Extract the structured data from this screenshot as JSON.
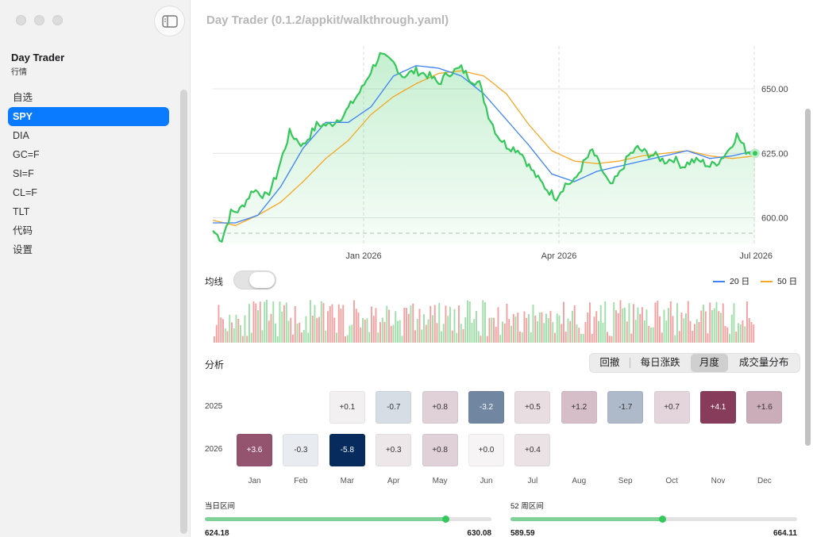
{
  "window_title": "Day Trader (0.1.2/appkit/walkthrough.yaml)",
  "sidebar": {
    "app_name": "Day Trader",
    "subtitle": "行情",
    "items": [
      {
        "label": "自选",
        "active": false
      },
      {
        "label": "SPY",
        "active": true
      },
      {
        "label": "DIA",
        "active": false
      },
      {
        "label": "GC=F",
        "active": false
      },
      {
        "label": "SI=F",
        "active": false
      },
      {
        "label": "CL=F",
        "active": false
      },
      {
        "label": "TLT",
        "active": false
      },
      {
        "label": "代码",
        "active": false
      },
      {
        "label": "设置",
        "active": false
      }
    ]
  },
  "chart_data": {
    "type": "line",
    "y_ticks": [
      "650.00",
      "625.00",
      "600.00"
    ],
    "x_ticks": [
      "Jan 2026",
      "Apr 2026",
      "Jul 2026"
    ],
    "ylim": [
      590,
      666
    ],
    "colors": {
      "price": "#34c759",
      "ma20": "#3b82f6",
      "ma50": "#f5a623",
      "up": "#9fdea9",
      "down": "#f2a0a0"
    },
    "price_keypoints": [
      [
        0,
        595
      ],
      [
        0.02,
        591.5
      ],
      [
        0.04,
        602
      ],
      [
        0.06,
        603
      ],
      [
        0.09,
        611
      ],
      [
        0.12,
        608
      ],
      [
        0.14,
        616
      ],
      [
        0.17,
        633
      ],
      [
        0.2,
        628
      ],
      [
        0.23,
        636
      ],
      [
        0.26,
        636
      ],
      [
        0.29,
        640
      ],
      [
        0.33,
        650
      ],
      [
        0.35,
        657
      ],
      [
        0.37,
        663
      ],
      [
        0.4,
        660
      ],
      [
        0.42,
        655
      ],
      [
        0.45,
        657
      ],
      [
        0.48,
        655
      ],
      [
        0.5,
        652
      ],
      [
        0.52,
        656
      ],
      [
        0.55,
        658
      ],
      [
        0.57,
        654
      ],
      [
        0.59,
        652
      ],
      [
        0.61,
        640
      ],
      [
        0.63,
        632
      ],
      [
        0.65,
        628
      ],
      [
        0.68,
        626
      ],
      [
        0.7,
        620
      ],
      [
        0.72,
        615
      ],
      [
        0.74,
        611
      ],
      [
        0.76,
        608
      ],
      [
        0.78,
        613
      ],
      [
        0.8,
        614
      ],
      [
        0.82,
        621
      ],
      [
        0.84,
        626
      ],
      [
        0.86,
        619
      ],
      [
        0.88,
        612
      ],
      [
        0.9,
        617
      ],
      [
        0.92,
        624
      ],
      [
        0.94,
        627
      ],
      [
        0.96,
        625
      ],
      [
        0.98,
        624
      ],
      [
        1.0,
        622
      ],
      [
        1.02,
        623
      ],
      [
        1.04,
        620
      ],
      [
        1.06,
        622
      ],
      [
        1.08,
        622
      ],
      [
        1.1,
        620
      ],
      [
        1.12,
        622
      ],
      [
        1.14,
        626
      ],
      [
        1.16,
        632
      ],
      [
        1.18,
        626
      ],
      [
        1.2,
        625
      ]
    ],
    "ma20_keypoints": [
      [
        0,
        598
      ],
      [
        0.05,
        598
      ],
      [
        0.1,
        601
      ],
      [
        0.15,
        612
      ],
      [
        0.2,
        627
      ],
      [
        0.25,
        637
      ],
      [
        0.3,
        637
      ],
      [
        0.35,
        643
      ],
      [
        0.4,
        655
      ],
      [
        0.45,
        659
      ],
      [
        0.5,
        658
      ],
      [
        0.55,
        655
      ],
      [
        0.6,
        648
      ],
      [
        0.65,
        638
      ],
      [
        0.7,
        628
      ],
      [
        0.75,
        617
      ],
      [
        0.8,
        614
      ],
      [
        0.85,
        618
      ],
      [
        0.9,
        620
      ],
      [
        0.95,
        622
      ],
      [
        1.0,
        624
      ],
      [
        1.05,
        626
      ],
      [
        1.1,
        623
      ],
      [
        1.15,
        624
      ],
      [
        1.2,
        626
      ]
    ],
    "ma50_keypoints": [
      [
        0,
        599
      ],
      [
        0.05,
        597
      ],
      [
        0.1,
        601
      ],
      [
        0.15,
        606
      ],
      [
        0.2,
        614
      ],
      [
        0.25,
        623
      ],
      [
        0.3,
        630
      ],
      [
        0.35,
        640
      ],
      [
        0.4,
        647
      ],
      [
        0.45,
        652
      ],
      [
        0.5,
        656
      ],
      [
        0.55,
        657
      ],
      [
        0.6,
        655
      ],
      [
        0.65,
        648
      ],
      [
        0.7,
        636
      ],
      [
        0.75,
        626
      ],
      [
        0.8,
        622
      ],
      [
        0.85,
        621
      ],
      [
        0.9,
        622
      ],
      [
        0.95,
        624
      ],
      [
        1.0,
        625
      ],
      [
        1.05,
        626
      ],
      [
        1.1,
        624
      ],
      [
        1.15,
        623
      ],
      [
        1.2,
        624
      ]
    ]
  },
  "ma": {
    "label": "均线",
    "toggle_on": true
  },
  "legend": {
    "ma20": "20 日",
    "ma50": "50 日"
  },
  "analysis": {
    "label": "分析",
    "tabs": [
      "回撤",
      "每日涨跌",
      "月度",
      "成交量分布"
    ],
    "selected_tab": 2
  },
  "heatmap": {
    "months": [
      "Jan",
      "Feb",
      "Mar",
      "Apr",
      "May",
      "Jun",
      "Jul",
      "Aug",
      "Sep",
      "Oct",
      "Nov",
      "Dec"
    ],
    "rows": [
      {
        "year": "2025",
        "values": [
          null,
          null,
          0.1,
          -0.7,
          0.8,
          -3.2,
          0.5,
          1.2,
          -1.7,
          0.7,
          4.1,
          1.6
        ]
      },
      {
        "year": "2026",
        "values": [
          3.6,
          -0.3,
          -5.8,
          0.3,
          0.8,
          0.0,
          0.4,
          null,
          null,
          null,
          null,
          null
        ]
      }
    ]
  },
  "ranges": {
    "day": {
      "label": "当日区间",
      "low": "624.18",
      "high": "630.08",
      "position": 0.84
    },
    "week52": {
      "label": "52 周区间",
      "low": "589.59",
      "high": "664.11",
      "position": 0.53
    }
  }
}
